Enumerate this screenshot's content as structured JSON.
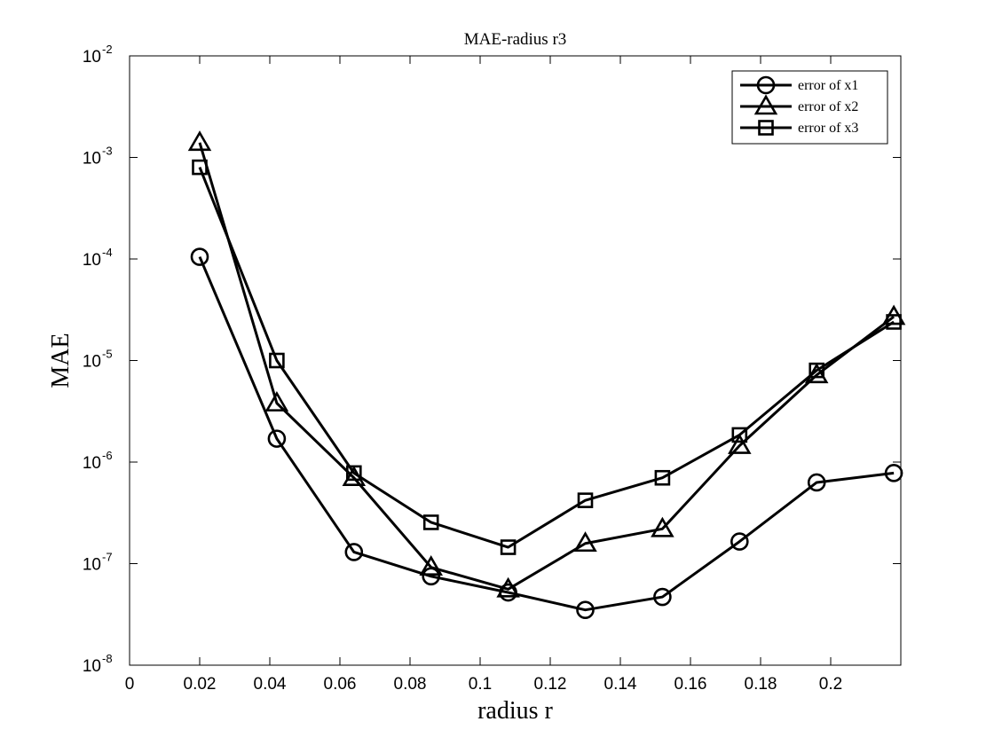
{
  "chart_data": {
    "type": "line",
    "title": "MAE-radius r3",
    "xlabel": "radius r",
    "ylabel": "MAE",
    "xlim": [
      0,
      0.22
    ],
    "ylim": [
      1e-08,
      0.01
    ],
    "yscale": "log",
    "grid": false,
    "legend_position": "top-right",
    "x_ticks": [
      "0",
      "0.02",
      "0.04",
      "0.06",
      "0.08",
      "0.1",
      "0.12",
      "0.14",
      "0.16",
      "0.18",
      "0.2"
    ],
    "y_ticks": [
      {
        "base": "10",
        "exp": "-8"
      },
      {
        "base": "10",
        "exp": "-7"
      },
      {
        "base": "10",
        "exp": "-6"
      },
      {
        "base": "10",
        "exp": "-5"
      },
      {
        "base": "10",
        "exp": "-4"
      },
      {
        "base": "10",
        "exp": "-3"
      },
      {
        "base": "10",
        "exp": "-2"
      }
    ],
    "x": [
      0.02,
      0.042,
      0.064,
      0.086,
      0.108,
      0.13,
      0.152,
      0.174,
      0.196,
      0.218
    ],
    "series": [
      {
        "name": "error of x1",
        "marker": "circle",
        "values": [
          0.000105,
          1.7e-06,
          1.3e-07,
          7.5e-08,
          5.2e-08,
          3.5e-08,
          4.7e-08,
          1.65e-07,
          6.3e-07,
          7.8e-07
        ]
      },
      {
        "name": "error of x2",
        "marker": "triangle",
        "values": [
          0.0014,
          3.8e-06,
          7e-07,
          9.2e-08,
          5.6e-08,
          1.58e-07,
          2.2e-07,
          1.45e-06,
          7.2e-06,
          2.7e-05
        ]
      },
      {
        "name": "error of x3",
        "marker": "square",
        "values": [
          0.0008,
          1e-05,
          7.8e-07,
          2.55e-07,
          1.45e-07,
          4.2e-07,
          7e-07,
          1.85e-06,
          8e-06,
          2.4e-05
        ]
      }
    ],
    "colors": {
      "line": "#000000",
      "background": "#ffffff"
    }
  }
}
